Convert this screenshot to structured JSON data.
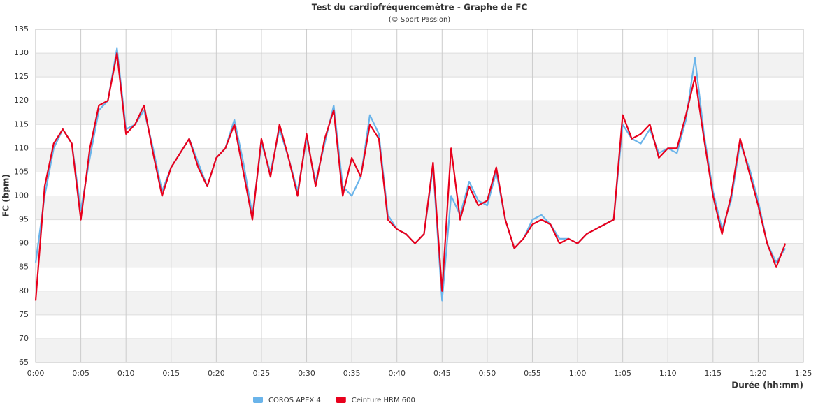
{
  "chart_data": {
    "type": "line",
    "title": "Test du cardiofréquencemètre - Graphe de FC",
    "subtitle": "(© Sport Passion)",
    "xlabel": "Durée (hh:mm)",
    "ylabel": "FC (bpm)",
    "x": [
      0,
      1,
      2,
      3,
      4,
      5,
      6,
      7,
      8,
      9,
      10,
      11,
      12,
      13,
      14,
      15,
      16,
      17,
      18,
      19,
      20,
      21,
      22,
      23,
      24,
      25,
      26,
      27,
      28,
      29,
      30,
      31,
      32,
      33,
      34,
      35,
      36,
      37,
      38,
      39,
      40,
      41,
      42,
      43,
      44,
      45,
      46,
      47,
      48,
      49,
      50,
      51,
      52,
      53,
      54,
      55,
      56,
      57,
      58,
      59,
      60,
      61,
      62,
      63,
      64,
      65,
      66,
      67,
      68,
      69,
      70,
      71,
      72,
      73,
      74,
      75,
      76,
      77,
      78,
      79,
      80,
      81,
      82,
      83
    ],
    "series": [
      {
        "name": "COROS APEX 4",
        "color": "#6ab4ea",
        "values": [
          86,
          100,
          110,
          114,
          111,
          97,
          108,
          118,
          120,
          131,
          114,
          115,
          118,
          110,
          101,
          106,
          109,
          112,
          107,
          102,
          108,
          110,
          116,
          107,
          96,
          111,
          105,
          114,
          108,
          101,
          112,
          103,
          111,
          119,
          102,
          100,
          104,
          117,
          113,
          96,
          93,
          92,
          90,
          92,
          106,
          78,
          100,
          96,
          103,
          99,
          98,
          105,
          95,
          89,
          91,
          95,
          96,
          94,
          91,
          91,
          90,
          92,
          93,
          94,
          95,
          115,
          112,
          111,
          114,
          109,
          110,
          109,
          116,
          129,
          113,
          101,
          93,
          99,
          111,
          106,
          99,
          90,
          86,
          89
        ]
      },
      {
        "name": "Ceinture HRM 600",
        "color": "#e8001c",
        "values": [
          78,
          102,
          111,
          114,
          111,
          95,
          110,
          119,
          120,
          130,
          113,
          115,
          119,
          109,
          100,
          106,
          109,
          112,
          106,
          102,
          108,
          110,
          115,
          105,
          95,
          112,
          104,
          115,
          108,
          100,
          113,
          102,
          112,
          118,
          100,
          108,
          104,
          115,
          112,
          95,
          93,
          92,
          90,
          92,
          107,
          80,
          110,
          95,
          102,
          98,
          99,
          106,
          95,
          89,
          91,
          94,
          95,
          94,
          90,
          91,
          90,
          92,
          93,
          94,
          95,
          117,
          112,
          113,
          115,
          108,
          110,
          110,
          117,
          125,
          112,
          100,
          92,
          100,
          112,
          105,
          98,
          90,
          85,
          90
        ]
      }
    ],
    "xlim": [
      0,
      85
    ],
    "xticks": [
      {
        "value": 0,
        "label": "0:00"
      },
      {
        "value": 5,
        "label": "0:05"
      },
      {
        "value": 10,
        "label": "0:10"
      },
      {
        "value": 15,
        "label": "0:15"
      },
      {
        "value": 20,
        "label": "0:20"
      },
      {
        "value": 25,
        "label": "0:25"
      },
      {
        "value": 30,
        "label": "0:30"
      },
      {
        "value": 35,
        "label": "0:35"
      },
      {
        "value": 40,
        "label": "0:40"
      },
      {
        "value": 45,
        "label": "0:45"
      },
      {
        "value": 50,
        "label": "0:50"
      },
      {
        "value": 55,
        "label": "0:55"
      },
      {
        "value": 60,
        "label": "1:00"
      },
      {
        "value": 65,
        "label": "1:05"
      },
      {
        "value": 70,
        "label": "1:10"
      },
      {
        "value": 75,
        "label": "1:15"
      },
      {
        "value": 80,
        "label": "1:20"
      },
      {
        "value": 85,
        "label": "1:25"
      }
    ],
    "ylim": [
      65,
      135
    ],
    "yticks": [
      65,
      70,
      75,
      80,
      85,
      90,
      95,
      100,
      105,
      110,
      115,
      120,
      125,
      130,
      135
    ],
    "grid": true,
    "band_color": "#f2f2f2",
    "legend": "bottom"
  }
}
